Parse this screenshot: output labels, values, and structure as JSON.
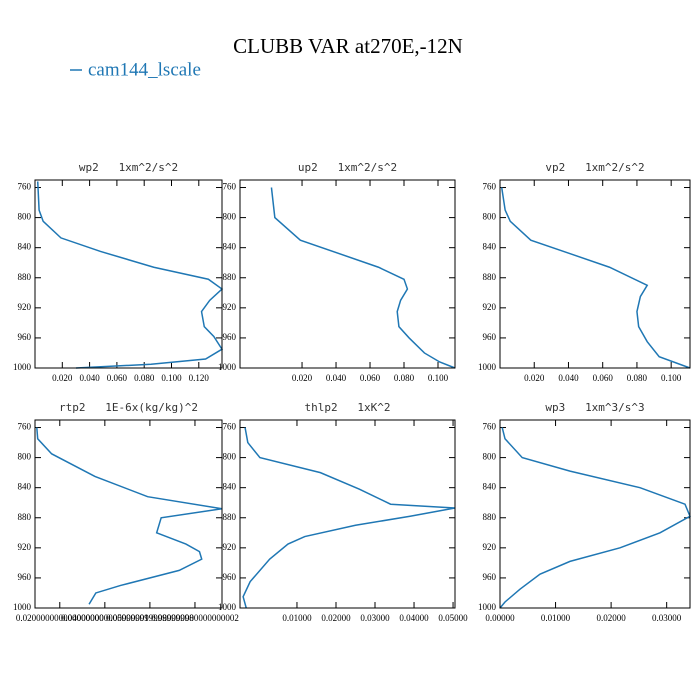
{
  "title": "CLUBB VAR at270E,-12N",
  "legend": {
    "label": "cam144_lscale",
    "color": "#1f77b4"
  },
  "chart_data": [
    {
      "type": "line",
      "title": "wp2   1xm^2/s^2",
      "x": [
        0.002,
        0.003,
        0.006,
        0.019,
        0.048,
        0.087,
        0.127,
        0.137,
        0.128,
        0.122,
        0.124,
        0.131,
        0.137,
        0.125,
        0.085,
        0.03
      ],
      "y": [
        752,
        790,
        805,
        827,
        845,
        866,
        882,
        895,
        910,
        925,
        945,
        958,
        975,
        988,
        995,
        1000
      ],
      "xlim": [
        0,
        0.137
      ],
      "ylim": [
        1000,
        750
      ],
      "xticks": [
        {
          "value": 0.02,
          "label": "0.020"
        },
        {
          "value": 0.04,
          "label": "0.040"
        },
        {
          "value": 0.06,
          "label": "0.060"
        },
        {
          "value": 0.08,
          "label": "0.080"
        },
        {
          "value": 0.1,
          "label": "0.100"
        },
        {
          "value": 0.12,
          "label": "0.120"
        }
      ],
      "yticks": [
        760,
        800,
        840,
        880,
        920,
        960,
        1000
      ]
    },
    {
      "type": "line",
      "title": "up2   1xm^2/s^2",
      "x": [
        0.002,
        0.004,
        0.019,
        0.065,
        0.08,
        0.082,
        0.078,
        0.076,
        0.077,
        0.083,
        0.092,
        0.101,
        0.11
      ],
      "y": [
        760,
        800,
        830,
        866,
        882,
        895,
        910,
        925,
        945,
        960,
        980,
        992,
        1000
      ],
      "xlim": [
        -0.0165,
        0.11
      ],
      "ylim": [
        1000,
        750
      ],
      "xticks": [
        {
          "value": 0.02,
          "label": "0.020"
        },
        {
          "value": 0.04,
          "label": "0.040"
        },
        {
          "value": 0.06,
          "label": "0.060"
        },
        {
          "value": 0.08,
          "label": "0.080"
        },
        {
          "value": 0.1,
          "label": "0.100"
        }
      ],
      "yticks": [
        760,
        800,
        840,
        880,
        920,
        960,
        1000
      ]
    },
    {
      "type": "line",
      "title": "vp2   1xm^2/s^2",
      "x": [
        0.001,
        0.003,
        0.006,
        0.018,
        0.041,
        0.064,
        0.086,
        0.082,
        0.08,
        0.081,
        0.086,
        0.093,
        0.111
      ],
      "y": [
        760,
        790,
        805,
        830,
        848,
        866,
        890,
        905,
        925,
        945,
        965,
        985,
        1000
      ],
      "xlim": [
        0,
        0.111
      ],
      "ylim": [
        1000,
        750
      ],
      "xticks": [
        {
          "value": 0.02,
          "label": "0.020"
        },
        {
          "value": 0.04,
          "label": "0.040"
        },
        {
          "value": 0.06,
          "label": "0.060"
        },
        {
          "value": 0.08,
          "label": "0.080"
        },
        {
          "value": 0.1,
          "label": "0.100"
        }
      ],
      "yticks": [
        760,
        800,
        840,
        880,
        920,
        960,
        1000
      ]
    },
    {
      "type": "line",
      "title": "rtp2   1E-6x(kg/kg)^2",
      "x": [
        0.0098,
        0.0102,
        0.0164,
        0.0356,
        0.059,
        0.092,
        0.065,
        0.063,
        0.076,
        0.082,
        0.083,
        0.073,
        0.047,
        0.036,
        0.033
      ],
      "y": [
        760,
        775,
        795,
        825,
        852,
        868,
        880,
        900,
        915,
        925,
        935,
        950,
        970,
        980,
        995
      ],
      "xlim": [
        0.009,
        0.092
      ],
      "ylim": [
        1000,
        750
      ],
      "xticks": [
        {
          "value": 0.02,
          "label": "0.020000000000000000"
        },
        {
          "value": 0.04,
          "label": "0.040000000000000001"
        },
        {
          "value": 0.06,
          "label": "0.059999999999999998"
        },
        {
          "value": 0.08,
          "label": "0.080000000000000002"
        }
      ],
      "yticks": [
        760,
        800,
        840,
        880,
        920,
        960,
        1000
      ]
    },
    {
      "type": "line",
      "title": "thlp2   1xK^2",
      "x": [
        -0.0033,
        -0.0026,
        0.0005,
        0.016,
        0.026,
        0.034,
        0.0505,
        0.039,
        0.025,
        0.012,
        0.0077,
        0.003,
        -0.002,
        -0.0038,
        -0.003
      ],
      "y": [
        760,
        780,
        800,
        820,
        842,
        862,
        867,
        878,
        890,
        905,
        915,
        935,
        965,
        985,
        1000
      ],
      "xlim": [
        -0.0046,
        0.0505
      ],
      "ylim": [
        1000,
        750
      ],
      "xticks": [
        {
          "value": 0.01,
          "label": "0.01000"
        },
        {
          "value": 0.02,
          "label": "0.02000"
        },
        {
          "value": 0.03,
          "label": "0.03000"
        },
        {
          "value": 0.04,
          "label": "0.04000"
        },
        {
          "value": 0.05,
          "label": "0.05000"
        }
      ],
      "yticks": [
        760,
        800,
        840,
        880,
        920,
        960,
        1000
      ]
    },
    {
      "type": "line",
      "title": "wp3   1xm^3/s^3",
      "x": [
        0.0004,
        0.0009,
        0.004,
        0.0126,
        0.0252,
        0.0333,
        0.0342,
        0.0288,
        0.0216,
        0.0126,
        0.0072,
        0.0036,
        0.0009,
        0
      ],
      "y": [
        760,
        775,
        800,
        818,
        840,
        862,
        878,
        900,
        920,
        938,
        955,
        975,
        992,
        1000
      ],
      "xlim": [
        0,
        0.0342
      ],
      "ylim": [
        1000,
        750
      ],
      "xticks": [
        {
          "value": 0,
          "label": "0.00000"
        },
        {
          "value": 0.01,
          "label": "0.01000"
        },
        {
          "value": 0.02,
          "label": "0.02000"
        },
        {
          "value": 0.03,
          "label": "0.03000"
        }
      ],
      "yticks": [
        760,
        800,
        840,
        880,
        920,
        960,
        1000
      ]
    }
  ]
}
